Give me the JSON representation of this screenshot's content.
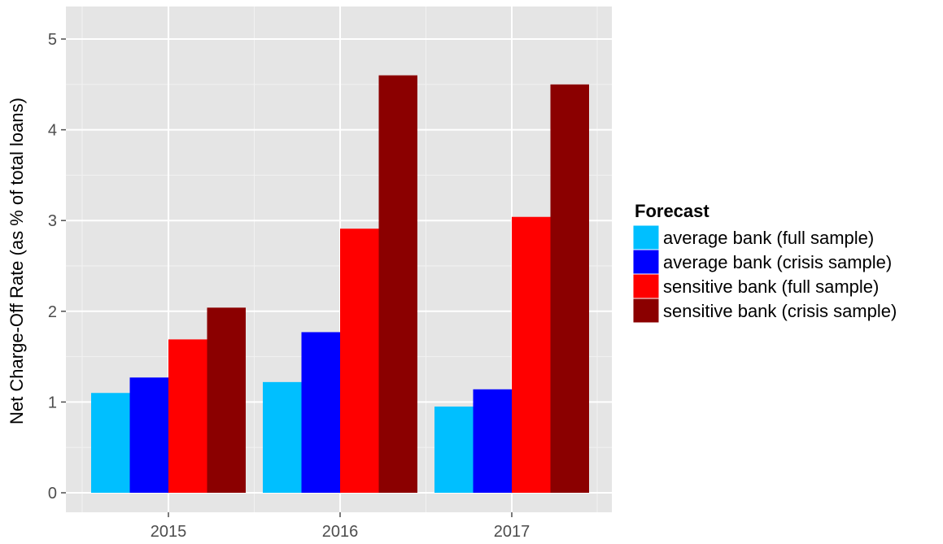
{
  "chart_data": {
    "type": "bar",
    "categories": [
      "2015",
      "2016",
      "2017"
    ],
    "series": [
      {
        "name": "average bank (full sample)",
        "color": "#00bfff",
        "values": [
          1.1,
          1.22,
          0.95
        ]
      },
      {
        "name": "average bank (crisis sample)",
        "color": "#0000ff",
        "values": [
          1.27,
          1.77,
          1.14
        ]
      },
      {
        "name": "sensitive bank (full sample)",
        "color": "#ff0000",
        "values": [
          1.69,
          2.91,
          3.04
        ]
      },
      {
        "name": "sensitive bank (crisis sample)",
        "color": "#8b0000",
        "values": [
          2.04,
          4.6,
          4.5
        ]
      }
    ],
    "title": "",
    "xlabel": "",
    "ylabel": "Net Charge-Off Rate (as % of total loans)",
    "ylim": [
      0,
      5.35
    ],
    "yticks": [
      "0",
      "1",
      "2",
      "3",
      "4",
      "5"
    ],
    "grid": true,
    "panel_background": "#e5e5e5",
    "legend": {
      "title": "Forecast",
      "placement": "right"
    }
  }
}
